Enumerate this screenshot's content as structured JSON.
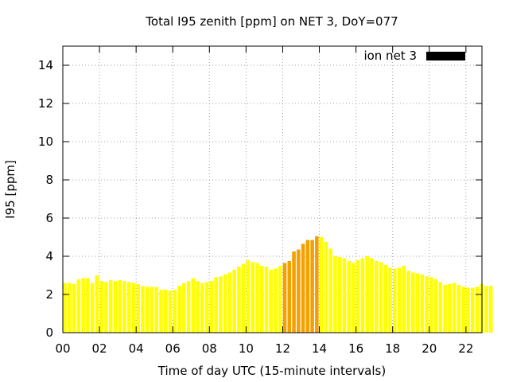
{
  "chart_data": {
    "type": "bar",
    "title": "Total I95 zenith [ppm] on NET 3, DoY=077",
    "xlabel": "Time of day UTC (15-minute intervals)",
    "ylabel": "I95 [ppm]",
    "xlim": [
      0,
      22.875
    ],
    "ylim": [
      0,
      15
    ],
    "x_ticks": [
      "00",
      "02",
      "04",
      "06",
      "08",
      "10",
      "12",
      "14",
      "16",
      "18",
      "20",
      "22"
    ],
    "y_ticks": [
      "0",
      "2",
      "4",
      "6",
      "8",
      "10",
      "12",
      "14"
    ],
    "grid": true,
    "legend": {
      "label": "ion net 3",
      "position": "top-right",
      "color": "#000000"
    },
    "bin_width_hours": 0.25,
    "highlight_range_hours": [
      12,
      14
    ],
    "colors": {
      "normal": "#ffff00",
      "highlight": "#f4a000",
      "legend_swatch": "#000000"
    },
    "values": [
      2.6,
      2.6,
      2.55,
      2.8,
      2.85,
      2.85,
      2.6,
      3.0,
      2.7,
      2.65,
      2.75,
      2.7,
      2.75,
      2.7,
      2.65,
      2.6,
      2.55,
      2.45,
      2.4,
      2.4,
      2.4,
      2.25,
      2.25,
      2.2,
      2.25,
      2.45,
      2.6,
      2.7,
      2.85,
      2.7,
      2.6,
      2.65,
      2.7,
      2.9,
      2.95,
      3.05,
      3.15,
      3.3,
      3.45,
      3.6,
      3.8,
      3.7,
      3.65,
      3.5,
      3.45,
      3.3,
      3.35,
      3.5,
      3.65,
      3.75,
      4.25,
      4.35,
      4.65,
      4.85,
      4.85,
      5.05,
      5.0,
      4.75,
      4.4,
      4.0,
      3.95,
      3.9,
      3.75,
      3.65,
      3.8,
      3.9,
      4.0,
      3.9,
      3.75,
      3.7,
      3.55,
      3.4,
      3.35,
      3.4,
      3.5,
      3.25,
      3.15,
      3.1,
      3.05,
      2.95,
      2.9,
      2.8,
      2.65,
      2.5,
      2.55,
      2.6,
      2.5,
      2.4,
      2.35,
      2.35,
      2.4,
      2.55,
      2.45,
      2.45
    ]
  }
}
